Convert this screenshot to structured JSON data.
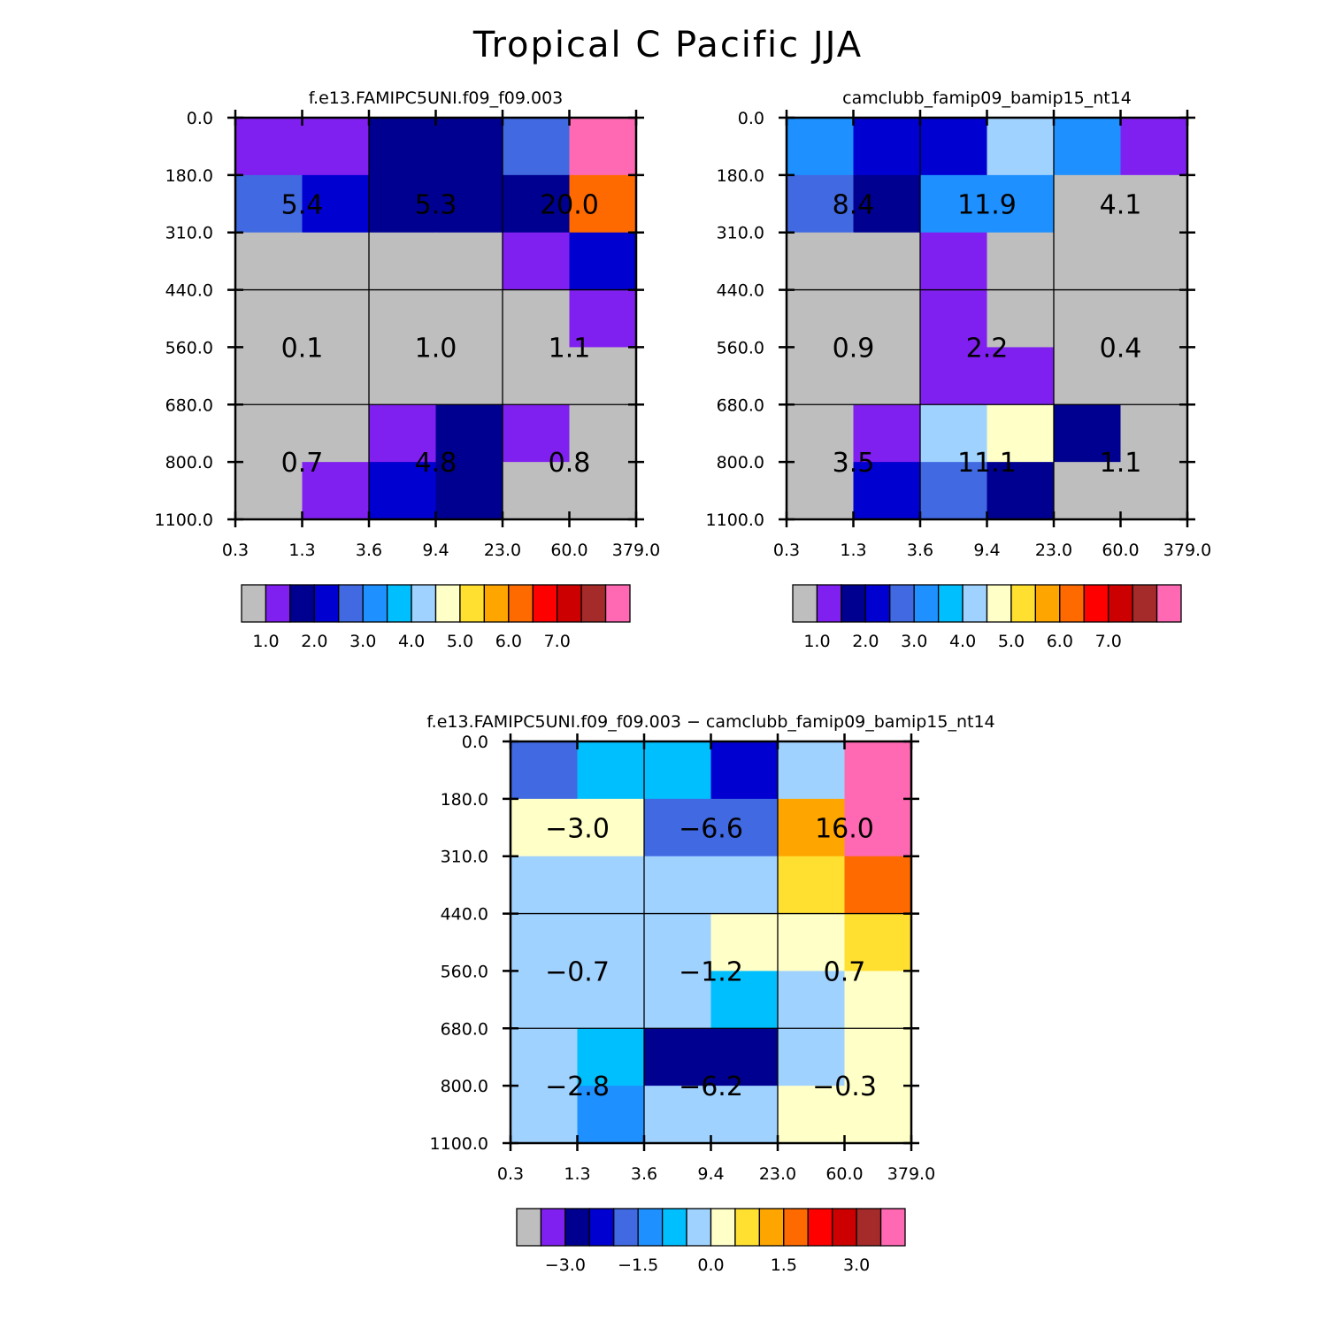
{
  "figure": {
    "title": "Tropical C Pacific JJA",
    "colors": {
      "missing": "#bebebe",
      "palette": [
        "#bebebe",
        "#8020f0",
        "#000090",
        "#0000d0",
        "#4169e1",
        "#1e90ff",
        "#00bfff",
        "#a0d2ff",
        "#ffffc8",
        "#ffe030",
        "#ffa500",
        "#ff6a00",
        "#ff0000",
        "#cc0000",
        "#a52a2a",
        "#ff69b4"
      ]
    }
  },
  "chart_data": [
    {
      "id": "panel-1",
      "type": "heatmap",
      "title": "f.e13.FAMIPC5UNI.f09_f09.003",
      "x_tick_labels": [
        "0.3",
        "1.3",
        "3.6",
        "9.4",
        "23.0",
        "60.0",
        "379.0"
      ],
      "y_tick_labels": [
        "0.0",
        "180.0",
        "310.0",
        "440.0",
        "560.0",
        "680.0",
        "800.0",
        "1100.0"
      ],
      "cell_colors": [
        [
          1,
          1,
          2,
          2,
          4,
          15
        ],
        [
          4,
          3,
          2,
          2,
          2,
          11
        ],
        [
          0,
          0,
          0,
          0,
          1,
          3
        ],
        [
          0,
          0,
          0,
          0,
          0,
          1
        ],
        [
          0,
          0,
          0,
          0,
          0,
          0
        ],
        [
          0,
          0,
          1,
          2,
          1,
          0
        ],
        [
          0,
          1,
          3,
          2,
          0,
          0
        ]
      ],
      "box_values": [
        [
          "5.4",
          "5.3",
          "20.0"
        ],
        [
          "0.1",
          "1.0",
          "1.1"
        ],
        [
          "0.7",
          "4.8",
          "0.8"
        ]
      ],
      "colorbar_labels": [
        "1.0",
        "2.0",
        "3.0",
        "4.0",
        "5.0",
        "6.0",
        "7.0"
      ]
    },
    {
      "id": "panel-2",
      "type": "heatmap",
      "title": "camclubb_famip09_bamip15_nt14",
      "x_tick_labels": [
        "0.3",
        "1.3",
        "3.6",
        "9.4",
        "23.0",
        "60.0",
        "379.0"
      ],
      "y_tick_labels": [
        "0.0",
        "180.0",
        "310.0",
        "440.0",
        "560.0",
        "680.0",
        "800.0",
        "1100.0"
      ],
      "cell_colors": [
        [
          5,
          3,
          3,
          7,
          5,
          1
        ],
        [
          4,
          2,
          5,
          5,
          0,
          0
        ],
        [
          0,
          0,
          1,
          0,
          0,
          0
        ],
        [
          0,
          0,
          1,
          0,
          0,
          0
        ],
        [
          0,
          0,
          1,
          1,
          0,
          0
        ],
        [
          0,
          1,
          7,
          8,
          2,
          0
        ],
        [
          0,
          3,
          4,
          2,
          0,
          0
        ]
      ],
      "box_values": [
        [
          "8.4",
          "11.9",
          "4.1"
        ],
        [
          "0.9",
          "2.2",
          "0.4"
        ],
        [
          "3.5",
          "11.1",
          "1.1"
        ]
      ],
      "colorbar_labels": [
        "1.0",
        "2.0",
        "3.0",
        "4.0",
        "5.0",
        "6.0",
        "7.0"
      ]
    },
    {
      "id": "panel-3",
      "type": "heatmap",
      "title": "f.e13.FAMIPC5UNI.f09_f09.003 − camclubb_famip09_bamip15_nt14",
      "x_tick_labels": [
        "0.3",
        "1.3",
        "3.6",
        "9.4",
        "23.0",
        "60.0",
        "379.0"
      ],
      "y_tick_labels": [
        "0.0",
        "180.0",
        "310.0",
        "440.0",
        "560.0",
        "680.0",
        "800.0",
        "1100.0"
      ],
      "cell_colors": [
        [
          4,
          6,
          6,
          3,
          7,
          15
        ],
        [
          8,
          8,
          4,
          4,
          10,
          15
        ],
        [
          7,
          7,
          7,
          7,
          9,
          11
        ],
        [
          7,
          7,
          7,
          8,
          8,
          9
        ],
        [
          7,
          7,
          7,
          6,
          7,
          8
        ],
        [
          7,
          6,
          2,
          2,
          7,
          8
        ],
        [
          7,
          5,
          7,
          7,
          8,
          8
        ]
      ],
      "box_values": [
        [
          "−3.0",
          "−6.6",
          "16.0"
        ],
        [
          "−0.7",
          "−1.2",
          "0.7"
        ],
        [
          "−2.8",
          "−6.2",
          "−0.3"
        ]
      ],
      "colorbar_labels": [
        "−3.0",
        "−1.5",
        "0.0",
        "1.5",
        "3.0"
      ]
    }
  ]
}
